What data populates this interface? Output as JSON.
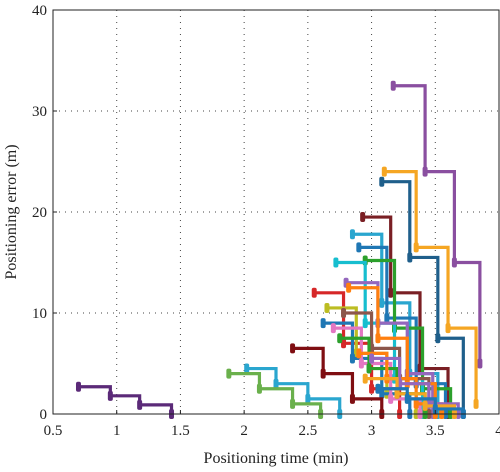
{
  "chart_data": {
    "type": "line",
    "xlabel": "Positioning time (min)",
    "ylabel": "Positioning error (m)",
    "xlim": [
      0.5,
      4.0
    ],
    "ylim": [
      0,
      40
    ],
    "xticks": [
      "0.5",
      "1",
      "1.5",
      "2",
      "2.5",
      "3",
      "3.5",
      "4"
    ],
    "yticks": [
      "0",
      "10",
      "20",
      "30",
      "40"
    ],
    "grid": true,
    "legend": "none",
    "series": [
      {
        "color": "#5b2a78",
        "x": [
          0.7,
          0.95,
          1.18,
          1.43
        ],
        "y": [
          2.7,
          1.8,
          0.9,
          0.0
        ]
      },
      {
        "color": "#8a4fa0",
        "x": [
          3.17,
          3.42,
          3.65,
          3.85
        ],
        "y": [
          32.5,
          24.0,
          15.0,
          5.0
        ]
      },
      {
        "color": "#f5a623",
        "x": [
          3.1,
          3.35,
          3.6,
          3.82
        ],
        "y": [
          24.0,
          16.5,
          8.5,
          1.0
        ]
      },
      {
        "color": "#1f5f8b",
        "x": [
          3.08,
          3.3,
          3.52,
          3.72
        ],
        "y": [
          23.0,
          15.5,
          7.5,
          0.0
        ]
      },
      {
        "color": "#7a1f24",
        "x": [
          2.93,
          3.15,
          3.38,
          3.6
        ],
        "y": [
          19.5,
          12.0,
          4.5,
          0.0
        ]
      },
      {
        "color": "#2aa6cf",
        "x": [
          2.85,
          3.08,
          3.3,
          3.52
        ],
        "y": [
          17.8,
          11.0,
          4.0,
          0.0
        ]
      },
      {
        "color": "#1f77b4",
        "x": [
          2.9,
          3.12,
          3.35,
          3.58
        ],
        "y": [
          16.5,
          9.5,
          3.0,
          0.0
        ]
      },
      {
        "color": "#2ca02c",
        "x": [
          2.95,
          3.18,
          3.4,
          3.62
        ],
        "y": [
          15.2,
          8.5,
          2.5,
          0.0
        ]
      },
      {
        "color": "#17becf",
        "x": [
          2.72,
          2.95,
          3.18,
          3.4
        ],
        "y": [
          15.0,
          9.0,
          3.5,
          0.0
        ]
      },
      {
        "color": "#d62728",
        "x": [
          2.55,
          2.78,
          3.0,
          3.22
        ],
        "y": [
          12.0,
          7.0,
          2.5,
          0.0
        ]
      },
      {
        "color": "#9467bd",
        "x": [
          2.8,
          3.05,
          3.28,
          3.48
        ],
        "y": [
          13.0,
          9.0,
          4.0,
          0.0
        ]
      },
      {
        "color": "#ff7f0e",
        "x": [
          2.82,
          3.05,
          3.28,
          3.5
        ],
        "y": [
          12.5,
          7.5,
          3.0,
          0.0
        ]
      },
      {
        "color": "#bcbd22",
        "x": [
          2.65,
          2.88,
          3.12,
          3.35
        ],
        "y": [
          10.5,
          6.0,
          2.0,
          0.0
        ]
      },
      {
        "color": "#8c564b",
        "x": [
          2.78,
          3.0,
          3.22,
          3.45
        ],
        "y": [
          10.0,
          6.5,
          3.5,
          0.0
        ]
      },
      {
        "color": "#1f77b4",
        "x": [
          2.62,
          2.85,
          3.08,
          3.3
        ],
        "y": [
          9.0,
          5.5,
          2.0,
          0.0
        ]
      },
      {
        "color": "#e377c2",
        "x": [
          2.7,
          2.92,
          3.15,
          3.38
        ],
        "y": [
          8.5,
          5.0,
          1.5,
          0.0
        ]
      },
      {
        "color": "#7f0e12",
        "x": [
          2.38,
          2.62,
          2.85,
          3.08
        ],
        "y": [
          6.5,
          4.0,
          1.5,
          0.0
        ]
      },
      {
        "color": "#2ca02c",
        "x": [
          2.75,
          2.98,
          3.2,
          3.42
        ],
        "y": [
          7.5,
          4.5,
          2.0,
          0.0
        ]
      },
      {
        "color": "#ff7f0e",
        "x": [
          2.9,
          3.12,
          3.35,
          3.55
        ],
        "y": [
          6.0,
          3.5,
          1.0,
          0.0
        ]
      },
      {
        "color": "#9467bd",
        "x": [
          3.0,
          3.22,
          3.45,
          3.68
        ],
        "y": [
          5.5,
          3.0,
          1.0,
          0.0
        ]
      },
      {
        "color": "#2aa6cf",
        "x": [
          2.02,
          2.25,
          2.5,
          2.75
        ],
        "y": [
          4.5,
          3.0,
          1.5,
          0.0
        ]
      },
      {
        "color": "#6ab04c",
        "x": [
          1.88,
          2.12,
          2.38,
          2.6
        ],
        "y": [
          4.0,
          2.5,
          1.0,
          0.0
        ]
      },
      {
        "color": "#f5a623",
        "x": [
          2.95,
          3.2,
          3.42,
          3.65
        ],
        "y": [
          3.5,
          2.0,
          0.8,
          0.0
        ]
      },
      {
        "color": "#1f77b4",
        "x": [
          3.05,
          3.28,
          3.5,
          3.72
        ],
        "y": [
          2.5,
          1.5,
          0.5,
          0.0
        ]
      }
    ]
  }
}
